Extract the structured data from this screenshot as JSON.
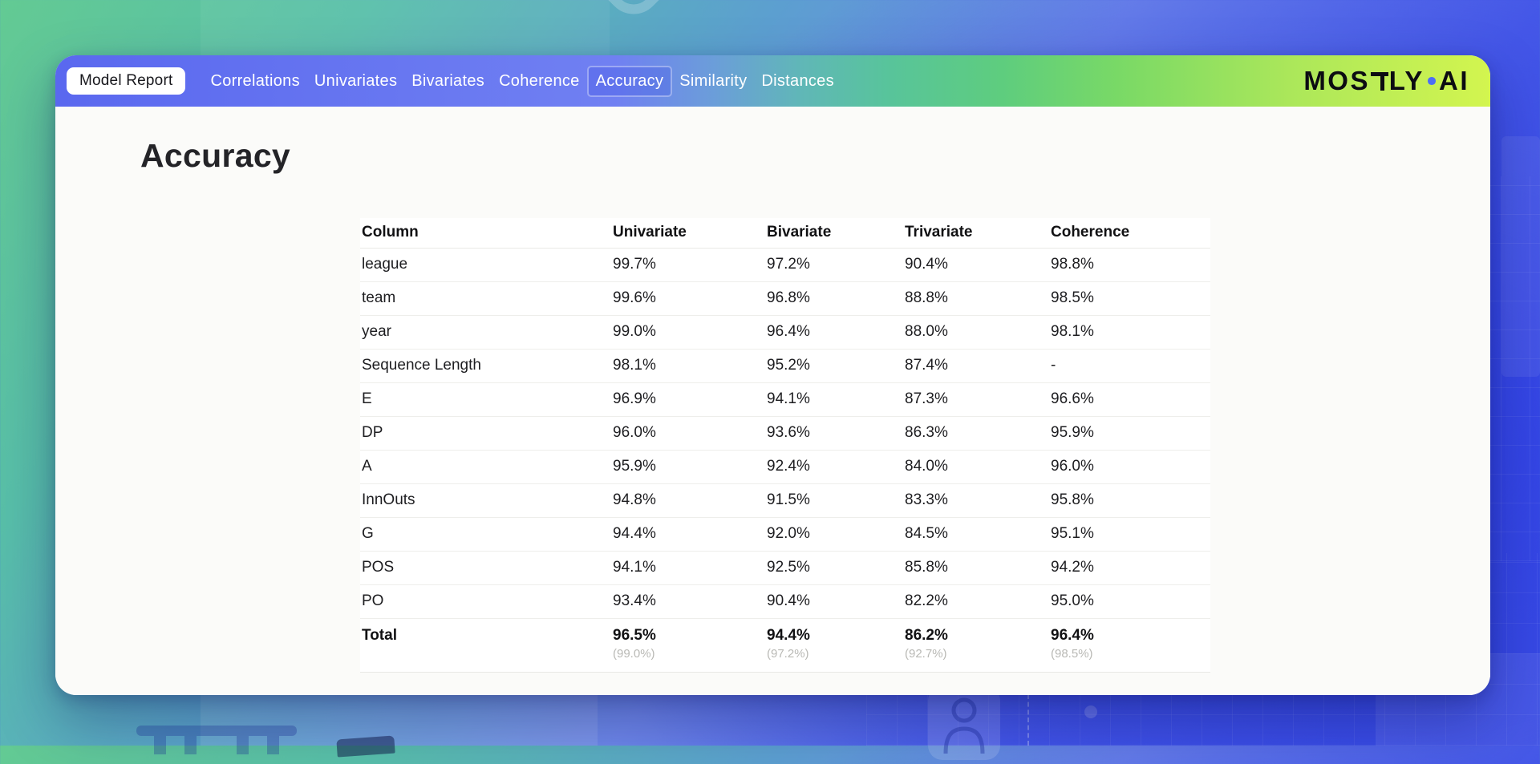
{
  "nav": {
    "badge_label": "Model Report",
    "items": [
      {
        "label": "Correlations",
        "active": false
      },
      {
        "label": "Univariates",
        "active": false
      },
      {
        "label": "Bivariates",
        "active": false
      },
      {
        "label": "Coherence",
        "active": false
      },
      {
        "label": "Accuracy",
        "active": true
      },
      {
        "label": "Similarity",
        "active": false
      },
      {
        "label": "Distances",
        "active": false
      }
    ],
    "logo": {
      "part1": "MOS",
      "part2": "LY",
      "part3": "AI",
      "dot_color": "#4d6ef4"
    }
  },
  "main": {
    "title": "Accuracy",
    "table": {
      "columns": [
        "Column",
        "Univariate",
        "Bivariate",
        "Trivariate",
        "Coherence"
      ],
      "rows": [
        [
          "league",
          "99.7%",
          "97.2%",
          "90.4%",
          "98.8%"
        ],
        [
          "team",
          "99.6%",
          "96.8%",
          "88.8%",
          "98.5%"
        ],
        [
          "year",
          "99.0%",
          "96.4%",
          "88.0%",
          "98.1%"
        ],
        [
          "Sequence Length",
          "98.1%",
          "95.2%",
          "87.4%",
          "-"
        ],
        [
          "E",
          "96.9%",
          "94.1%",
          "87.3%",
          "96.6%"
        ],
        [
          "DP",
          "96.0%",
          "93.6%",
          "86.3%",
          "95.9%"
        ],
        [
          "A",
          "95.9%",
          "92.4%",
          "84.0%",
          "96.0%"
        ],
        [
          "InnOuts",
          "94.8%",
          "91.5%",
          "83.3%",
          "95.8%"
        ],
        [
          "G",
          "94.4%",
          "92.0%",
          "84.5%",
          "95.1%"
        ],
        [
          "POS",
          "94.1%",
          "92.5%",
          "85.8%",
          "94.2%"
        ],
        [
          "PO",
          "93.4%",
          "90.4%",
          "82.2%",
          "95.0%"
        ]
      ],
      "total": {
        "label": "Total",
        "values": [
          "96.5%",
          "94.4%",
          "86.2%",
          "96.4%"
        ],
        "sub_values": [
          "(99.0%)",
          "(97.2%)",
          "(92.7%)",
          "(98.5%)"
        ]
      }
    }
  },
  "colors": {
    "nav_gradient_start": "#5a68ef",
    "nav_gradient_end": "#d3f54f",
    "logo_dot": "#4d6ef4",
    "active_tab_border": "rgba(255,255,255,0.38)"
  }
}
